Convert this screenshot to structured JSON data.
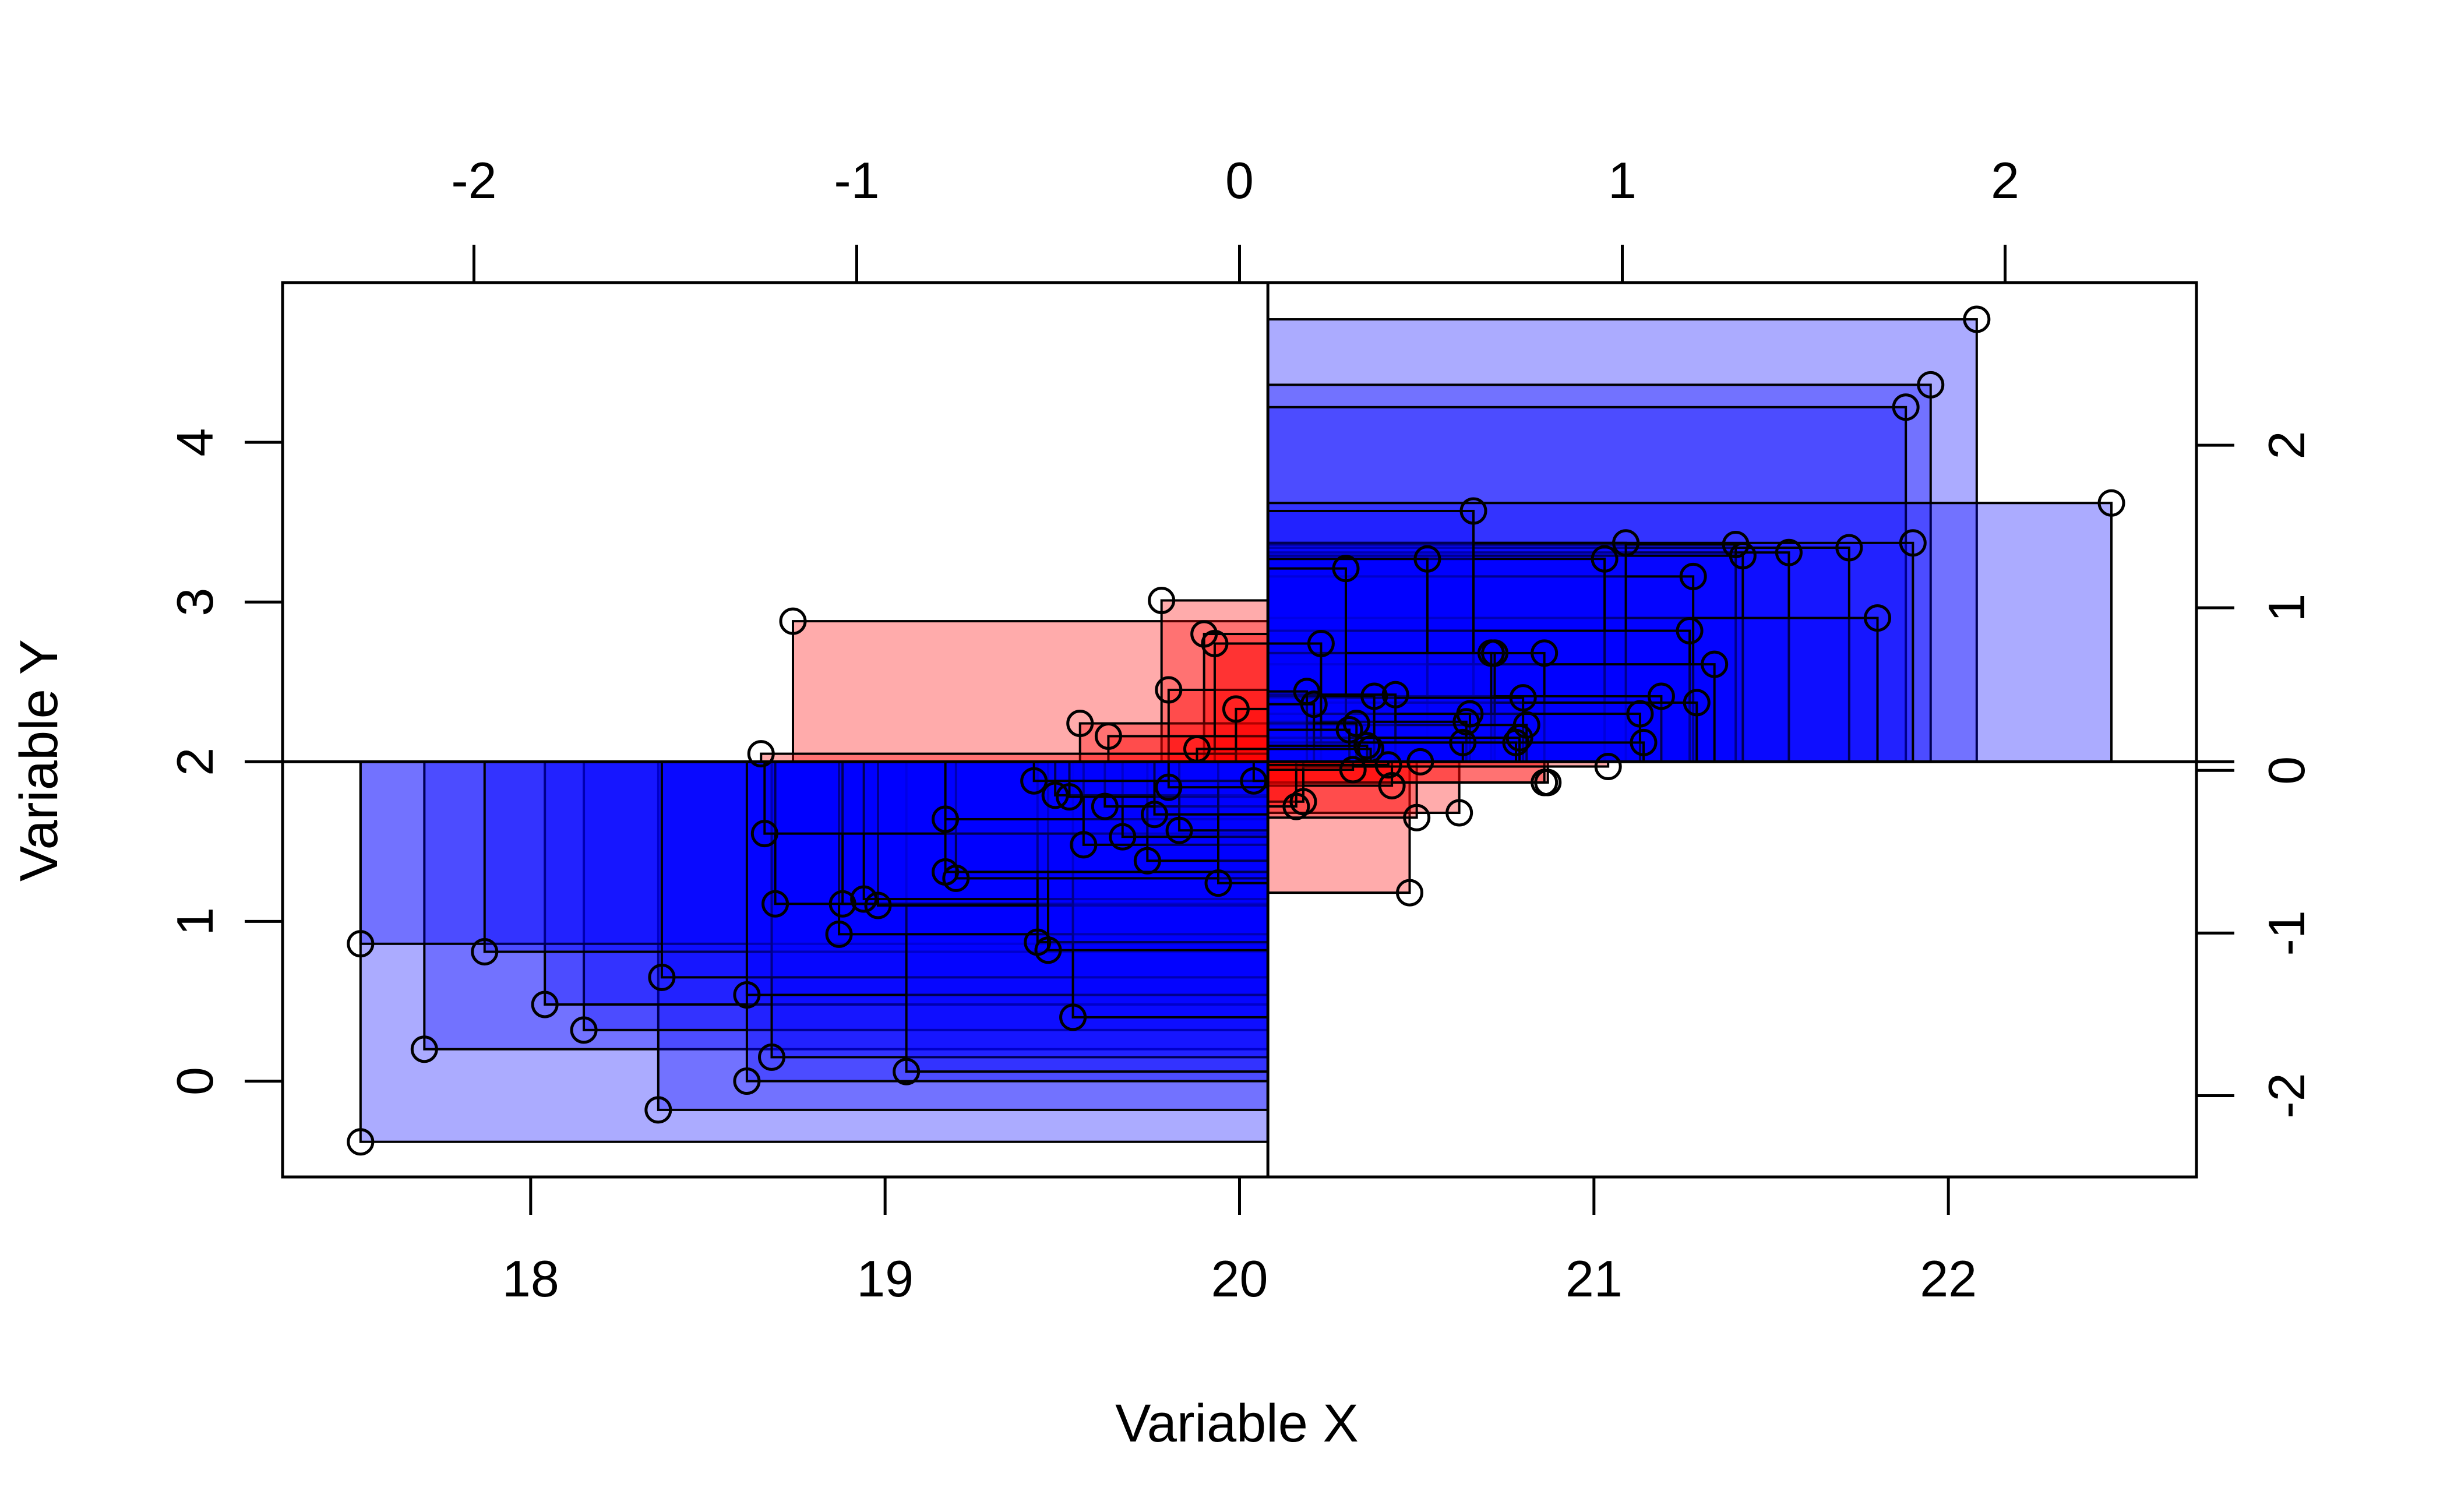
{
  "chart_data": {
    "type": "scatter",
    "title": "",
    "xlabel": "Variable X",
    "ylabel": "Variable Y",
    "xlim": [
      17.3,
      22.7
    ],
    "ylim": [
      -0.6,
      5.0
    ],
    "x_ticks": [
      "18",
      "19",
      "20",
      "21",
      "22"
    ],
    "y_ticks": [
      "0",
      "1",
      "2",
      "3",
      "4"
    ],
    "top_axis": {
      "range": [
        -2.5,
        2.5
      ],
      "ticks": [
        "-2",
        "-1",
        "0",
        "1",
        "2"
      ]
    },
    "right_axis": {
      "range": [
        -2.5,
        3.0
      ],
      "ticks": [
        "-2",
        "-1",
        "0",
        "1",
        "2"
      ]
    },
    "center": {
      "x": 20.08,
      "y": 2.0
    },
    "colors": {
      "positive": "#0000ff",
      "negative": "#ff0000"
    },
    "grid": false,
    "points": [
      {
        "x": 17.52,
        "y": -0.38
      },
      {
        "x": 17.52,
        "y": 0.86
      },
      {
        "x": 17.7,
        "y": 0.2
      },
      {
        "x": 17.87,
        "y": 0.81
      },
      {
        "x": 18.04,
        "y": 0.48
      },
      {
        "x": 18.15,
        "y": 0.32
      },
      {
        "x": 18.36,
        "y": -0.18
      },
      {
        "x": 18.37,
        "y": 0.65
      },
      {
        "x": 18.61,
        "y": 0.0
      },
      {
        "x": 18.61,
        "y": 0.54
      },
      {
        "x": 18.68,
        "y": 0.15
      },
      {
        "x": 18.69,
        "y": 1.11
      },
      {
        "x": 18.66,
        "y": 1.55
      },
      {
        "x": 18.65,
        "y": 2.05
      },
      {
        "x": 18.74,
        "y": 2.88
      },
      {
        "x": 18.87,
        "y": 0.92
      },
      {
        "x": 18.88,
        "y": 1.11
      },
      {
        "x": 18.94,
        "y": 1.14
      },
      {
        "x": 18.98,
        "y": 1.1
      },
      {
        "x": 19.06,
        "y": 0.06
      },
      {
        "x": 19.17,
        "y": 1.31
      },
      {
        "x": 19.2,
        "y": 1.27
      },
      {
        "x": 19.17,
        "y": 1.64
      },
      {
        "x": 19.42,
        "y": 1.88
      },
      {
        "x": 19.43,
        "y": 0.87
      },
      {
        "x": 19.46,
        "y": 0.82
      },
      {
        "x": 19.48,
        "y": 1.79
      },
      {
        "x": 19.52,
        "y": 1.78
      },
      {
        "x": 19.53,
        "y": 0.4
      },
      {
        "x": 19.56,
        "y": 1.48
      },
      {
        "x": 19.55,
        "y": 2.24
      },
      {
        "x": 19.62,
        "y": 1.72
      },
      {
        "x": 19.63,
        "y": 2.16
      },
      {
        "x": 19.67,
        "y": 1.53
      },
      {
        "x": 19.74,
        "y": 1.38
      },
      {
        "x": 19.76,
        "y": 1.67
      },
      {
        "x": 19.78,
        "y": 3.01
      },
      {
        "x": 19.8,
        "y": 1.84
      },
      {
        "x": 19.8,
        "y": 2.45
      },
      {
        "x": 19.83,
        "y": 1.57
      },
      {
        "x": 19.88,
        "y": 2.08
      },
      {
        "x": 19.9,
        "y": 2.8
      },
      {
        "x": 19.93,
        "y": 2.74
      },
      {
        "x": 19.94,
        "y": 1.24
      },
      {
        "x": 19.99,
        "y": 2.33
      },
      {
        "x": 20.04,
        "y": 1.88
      },
      {
        "x": 20.16,
        "y": 1.72
      },
      {
        "x": 20.18,
        "y": 1.75
      },
      {
        "x": 20.19,
        "y": 2.44
      },
      {
        "x": 20.21,
        "y": 2.36
      },
      {
        "x": 20.23,
        "y": 2.74
      },
      {
        "x": 20.3,
        "y": 3.21
      },
      {
        "x": 20.31,
        "y": 2.2
      },
      {
        "x": 20.33,
        "y": 2.24
      },
      {
        "x": 20.32,
        "y": 1.95
      },
      {
        "x": 20.37,
        "y": 2.08
      },
      {
        "x": 20.36,
        "y": 2.1
      },
      {
        "x": 20.38,
        "y": 2.41
      },
      {
        "x": 20.42,
        "y": 1.98
      },
      {
        "x": 20.43,
        "y": 1.85
      },
      {
        "x": 20.44,
        "y": 2.42
      },
      {
        "x": 20.48,
        "y": 1.18
      },
      {
        "x": 20.5,
        "y": 1.65
      },
      {
        "x": 20.51,
        "y": 2.0
      },
      {
        "x": 20.53,
        "y": 3.27
      },
      {
        "x": 20.62,
        "y": 1.68
      },
      {
        "x": 20.63,
        "y": 2.12
      },
      {
        "x": 20.64,
        "y": 2.25
      },
      {
        "x": 20.65,
        "y": 2.3
      },
      {
        "x": 20.66,
        "y": 3.57
      },
      {
        "x": 20.71,
        "y": 2.68
      },
      {
        "x": 20.72,
        "y": 2.68
      },
      {
        "x": 20.78,
        "y": 2.12
      },
      {
        "x": 20.79,
        "y": 2.15
      },
      {
        "x": 20.8,
        "y": 2.4
      },
      {
        "x": 20.81,
        "y": 2.23
      },
      {
        "x": 20.86,
        "y": 2.68
      },
      {
        "x": 20.86,
        "y": 1.87
      },
      {
        "x": 20.87,
        "y": 1.87
      },
      {
        "x": 21.04,
        "y": 1.97
      },
      {
        "x": 21.03,
        "y": 3.27
      },
      {
        "x": 21.09,
        "y": 3.37
      },
      {
        "x": 21.13,
        "y": 2.3
      },
      {
        "x": 21.14,
        "y": 2.12
      },
      {
        "x": 21.19,
        "y": 2.41
      },
      {
        "x": 21.27,
        "y": 2.82
      },
      {
        "x": 21.28,
        "y": 3.16
      },
      {
        "x": 21.29,
        "y": 2.37
      },
      {
        "x": 21.34,
        "y": 2.61
      },
      {
        "x": 21.4,
        "y": 3.36
      },
      {
        "x": 21.42,
        "y": 3.29
      },
      {
        "x": 21.55,
        "y": 3.31
      },
      {
        "x": 21.72,
        "y": 3.34
      },
      {
        "x": 21.8,
        "y": 2.9
      },
      {
        "x": 21.88,
        "y": 4.22
      },
      {
        "x": 21.9,
        "y": 3.37
      },
      {
        "x": 21.95,
        "y": 4.36
      },
      {
        "x": 22.08,
        "y": 4.77
      },
      {
        "x": 22.46,
        "y": 3.62
      }
    ]
  }
}
